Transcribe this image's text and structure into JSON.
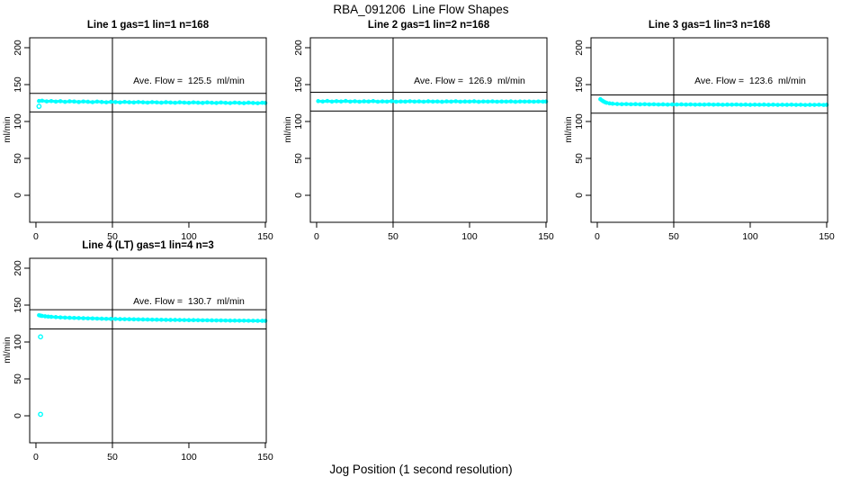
{
  "title": "RBA_091206  Line Flow Shapes",
  "xlabel": "Jog Position (1 second resolution)",
  "colors": {
    "marker": "#00FFFF",
    "axis": "#000000",
    "background": "#FFFFFF"
  },
  "chart_data": [
    {
      "type": "scatter",
      "title": "Line 1 gas=1 lin=1 n=168",
      "annotation": "Ave. Flow =  125.5  ml/min",
      "ave_flow_ml_min": 125.5,
      "n": 168,
      "ylabel": "ml/min",
      "xticks": [
        0,
        50,
        100,
        150
      ],
      "yticks": [
        0,
        50,
        100,
        150,
        200
      ],
      "xlim": [
        -4.1,
        150.6
      ],
      "ylim": [
        -36.6,
        213.4
      ],
      "vline_x": 50,
      "hlines": [
        138.1,
        113.0
      ],
      "points": [
        [
          2,
          127.8
        ],
        [
          4,
          128.2
        ],
        [
          7,
          127.2
        ],
        [
          10,
          127.7
        ],
        [
          13,
          126.9
        ],
        [
          16,
          127.5
        ],
        [
          19,
          126.6
        ],
        [
          22,
          127.3
        ],
        [
          25,
          127.0
        ],
        [
          28,
          126.4
        ],
        [
          31,
          127.1
        ],
        [
          34,
          126.7
        ],
        [
          37,
          126.2
        ],
        [
          40,
          126.9
        ],
        [
          43,
          126.4
        ],
        [
          46,
          126.0
        ],
        [
          49,
          126.6
        ],
        [
          52,
          126.3
        ],
        [
          55,
          125.9
        ],
        [
          58,
          126.5
        ],
        [
          61,
          126.1
        ],
        [
          64,
          125.8
        ],
        [
          67,
          126.3
        ],
        [
          70,
          126.0
        ],
        [
          73,
          125.6
        ],
        [
          76,
          126.2
        ],
        [
          79,
          125.9
        ],
        [
          82,
          125.5
        ],
        [
          85,
          126.1
        ],
        [
          88,
          125.7
        ],
        [
          91,
          125.4
        ],
        [
          94,
          126.0
        ],
        [
          97,
          125.6
        ],
        [
          100,
          125.3
        ],
        [
          103,
          125.9
        ],
        [
          106,
          125.5
        ],
        [
          109,
          125.2
        ],
        [
          112,
          125.8
        ],
        [
          115,
          125.4
        ],
        [
          118,
          125.1
        ],
        [
          121,
          125.7
        ],
        [
          124,
          125.3
        ],
        [
          127,
          125.0
        ],
        [
          130,
          125.6
        ],
        [
          133,
          125.2
        ],
        [
          136,
          124.9
        ],
        [
          139,
          125.5
        ],
        [
          142,
          125.1
        ],
        [
          145,
          124.8
        ],
        [
          148,
          125.4
        ],
        [
          150,
          125.1
        ]
      ],
      "outliers": [
        [
          2,
          120.5
        ]
      ]
    },
    {
      "type": "scatter",
      "title": "Line 2 gas=1 lin=2 n=168",
      "annotation": "Ave. Flow =  126.9  ml/min",
      "ave_flow_ml_min": 126.9,
      "n": 168,
      "ylabel": "ml/min",
      "xticks": [
        0,
        50,
        100,
        150
      ],
      "yticks": [
        0,
        50,
        100,
        150,
        200
      ],
      "xlim": [
        -4.1,
        150.6
      ],
      "ylim": [
        -36.6,
        213.4
      ],
      "vline_x": 50,
      "hlines": [
        139.6,
        114.2
      ],
      "points": [
        [
          1,
          127.6
        ],
        [
          4,
          127.1
        ],
        [
          7,
          127.8
        ],
        [
          10,
          126.9
        ],
        [
          13,
          127.5
        ],
        [
          16,
          127.1
        ],
        [
          19,
          127.8
        ],
        [
          22,
          126.9
        ],
        [
          25,
          127.4
        ],
        [
          28,
          126.8
        ],
        [
          31,
          127.3
        ],
        [
          34,
          127.0
        ],
        [
          37,
          127.6
        ],
        [
          40,
          126.8
        ],
        [
          43,
          127.2
        ],
        [
          46,
          126.9
        ],
        [
          49,
          127.5
        ],
        [
          52,
          126.8
        ],
        [
          55,
          127.1
        ],
        [
          58,
          126.9
        ],
        [
          61,
          127.4
        ],
        [
          64,
          126.9
        ],
        [
          67,
          127.2
        ],
        [
          70,
          126.8
        ],
        [
          73,
          127.3
        ],
        [
          76,
          126.9
        ],
        [
          79,
          127.1
        ],
        [
          82,
          126.7
        ],
        [
          85,
          127.2
        ],
        [
          88,
          126.9
        ],
        [
          91,
          127.4
        ],
        [
          94,
          126.8
        ],
        [
          97,
          127.0
        ],
        [
          100,
          126.9
        ],
        [
          103,
          127.3
        ],
        [
          106,
          126.7
        ],
        [
          109,
          127.1
        ],
        [
          112,
          126.9
        ],
        [
          115,
          127.2
        ],
        [
          118,
          126.8
        ],
        [
          121,
          127.0
        ],
        [
          124,
          126.9
        ],
        [
          127,
          127.2
        ],
        [
          130,
          126.7
        ],
        [
          133,
          127.1
        ],
        [
          136,
          126.9
        ],
        [
          139,
          127.0
        ],
        [
          142,
          126.8
        ],
        [
          145,
          127.1
        ],
        [
          148,
          126.9
        ],
        [
          150,
          127.0
        ]
      ],
      "outliers": []
    },
    {
      "type": "scatter",
      "title": "Line 3 gas=1 lin=3 n=168",
      "annotation": "Ave. Flow =  123.6  ml/min",
      "ave_flow_ml_min": 123.6,
      "n": 168,
      "ylabel": "ml/min",
      "xticks": [
        0,
        50,
        100,
        150
      ],
      "yticks": [
        0,
        50,
        100,
        150,
        200
      ],
      "xlim": [
        -4.1,
        150.6
      ],
      "ylim": [
        -36.6,
        213.4
      ],
      "vline_x": 50,
      "hlines": [
        136.0,
        111.2
      ],
      "points": [
        [
          2,
          130.2
        ],
        [
          3,
          128.6
        ],
        [
          4,
          127.3
        ],
        [
          5,
          126.2
        ],
        [
          6,
          125.4
        ],
        [
          8,
          124.6
        ],
        [
          10,
          124.1
        ],
        [
          13,
          123.7
        ],
        [
          16,
          123.4
        ],
        [
          19,
          123.6
        ],
        [
          22,
          123.3
        ],
        [
          25,
          123.5
        ],
        [
          28,
          123.2
        ],
        [
          31,
          123.4
        ],
        [
          34,
          123.1
        ],
        [
          37,
          123.3
        ],
        [
          40,
          123.0
        ],
        [
          43,
          123.2
        ],
        [
          46,
          122.9
        ],
        [
          49,
          123.1
        ],
        [
          52,
          123.0
        ],
        [
          55,
          123.2
        ],
        [
          58,
          122.9
        ],
        [
          61,
          123.1
        ],
        [
          64,
          122.8
        ],
        [
          67,
          123.0
        ],
        [
          70,
          122.9
        ],
        [
          73,
          123.1
        ],
        [
          76,
          122.8
        ],
        [
          79,
          123.0
        ],
        [
          82,
          122.7
        ],
        [
          85,
          122.9
        ],
        [
          88,
          122.8
        ],
        [
          91,
          123.0
        ],
        [
          94,
          122.7
        ],
        [
          97,
          122.9
        ],
        [
          100,
          122.6
        ],
        [
          103,
          122.8
        ],
        [
          106,
          122.7
        ],
        [
          109,
          122.9
        ],
        [
          112,
          122.6
        ],
        [
          115,
          122.8
        ],
        [
          118,
          122.5
        ],
        [
          121,
          122.7
        ],
        [
          124,
          122.6
        ],
        [
          127,
          122.8
        ],
        [
          130,
          122.5
        ],
        [
          133,
          122.7
        ],
        [
          136,
          122.4
        ],
        [
          139,
          122.6
        ],
        [
          142,
          122.5
        ],
        [
          145,
          122.7
        ],
        [
          148,
          122.4
        ],
        [
          150,
          122.6
        ]
      ],
      "outliers": []
    },
    {
      "type": "scatter",
      "title": "Line 4 (LT) gas=1 lin=4 n=3",
      "annotation": "Ave. Flow =  130.7  ml/min",
      "ave_flow_ml_min": 130.7,
      "n": 3,
      "ylabel": "ml/min",
      "xticks": [
        0,
        50,
        100,
        150
      ],
      "yticks": [
        0,
        50,
        100,
        150,
        200
      ],
      "xlim": [
        -4.1,
        150.6
      ],
      "ylim": [
        -36.6,
        213.4
      ],
      "vline_x": 50,
      "hlines": [
        143.8,
        117.6
      ],
      "points": [
        [
          2,
          136.2
        ],
        [
          3,
          135.7
        ],
        [
          4,
          135.3
        ],
        [
          6,
          134.8
        ],
        [
          8,
          134.4
        ],
        [
          10,
          134.1
        ],
        [
          13,
          133.7
        ],
        [
          16,
          133.3
        ],
        [
          19,
          133.0
        ],
        [
          22,
          132.8
        ],
        [
          25,
          132.6
        ],
        [
          28,
          132.4
        ],
        [
          31,
          132.2
        ],
        [
          34,
          132.0
        ],
        [
          37,
          131.9
        ],
        [
          40,
          131.7
        ],
        [
          43,
          131.6
        ],
        [
          46,
          131.4
        ],
        [
          49,
          131.3
        ],
        [
          52,
          131.2
        ],
        [
          55,
          131.0
        ],
        [
          58,
          130.9
        ],
        [
          61,
          130.8
        ],
        [
          64,
          130.7
        ],
        [
          67,
          130.6
        ],
        [
          70,
          130.5
        ],
        [
          73,
          130.4
        ],
        [
          76,
          130.3
        ],
        [
          79,
          130.2
        ],
        [
          82,
          130.1
        ],
        [
          85,
          130.0
        ],
        [
          88,
          129.9
        ],
        [
          91,
          129.9
        ],
        [
          94,
          129.8
        ],
        [
          97,
          129.7
        ],
        [
          100,
          129.6
        ],
        [
          103,
          129.6
        ],
        [
          106,
          129.5
        ],
        [
          109,
          129.4
        ],
        [
          112,
          129.4
        ],
        [
          115,
          129.3
        ],
        [
          118,
          129.2
        ],
        [
          121,
          129.2
        ],
        [
          124,
          129.1
        ],
        [
          127,
          129.0
        ],
        [
          130,
          129.0
        ],
        [
          133,
          128.9
        ],
        [
          136,
          128.9
        ],
        [
          139,
          128.8
        ],
        [
          142,
          128.8
        ],
        [
          145,
          128.7
        ],
        [
          148,
          128.7
        ],
        [
          150,
          128.6
        ]
      ],
      "outliers": [
        [
          3,
          107
        ],
        [
          3,
          2
        ]
      ]
    }
  ]
}
